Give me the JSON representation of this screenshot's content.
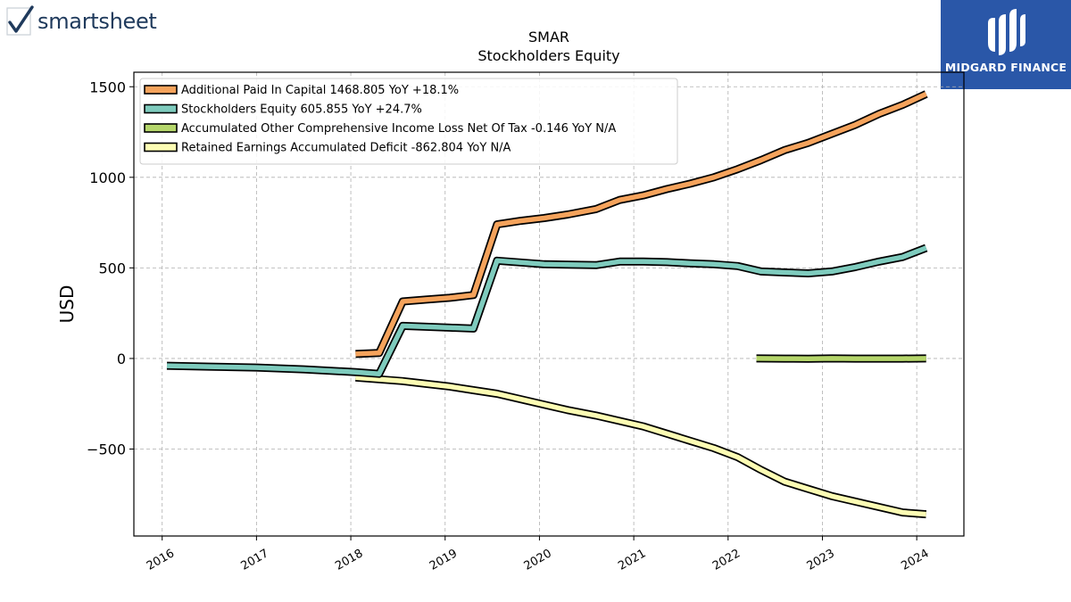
{
  "branding": {
    "left_logo_text": "smartsheet",
    "right_logo_text": "MIDGARD FINANCE"
  },
  "chart_data": {
    "type": "line",
    "title": "SMAR",
    "subtitle": "Stockholders  Equity",
    "xlabel": "",
    "ylabel": "USD",
    "xlim": [
      2015.7,
      2024.5
    ],
    "ylim": [
      -980,
      1580
    ],
    "x_ticks": [
      2016,
      2017,
      2018,
      2019,
      2020,
      2021,
      2022,
      2023,
      2024
    ],
    "x_tick_labels": [
      "2016",
      "2017",
      "2018",
      "2019",
      "2020",
      "2021",
      "2022",
      "2023",
      "2024"
    ],
    "y_ticks": [
      -500,
      0,
      500,
      1000,
      1500
    ],
    "y_tick_labels": [
      "−500",
      "0",
      "500",
      "1000",
      "1500"
    ],
    "grid": true,
    "legend_position": "top-left",
    "series": [
      {
        "name": "Additional Paid In Capital  1468.805 YoY +18.1%",
        "color": "#f5a35c",
        "x": [
          2018.05,
          2018.3,
          2018.55,
          2018.8,
          2019.05,
          2019.3,
          2019.55,
          2019.8,
          2020.05,
          2020.3,
          2020.6,
          2020.85,
          2021.1,
          2021.35,
          2021.6,
          2021.85,
          2022.1,
          2022.35,
          2022.6,
          2022.85,
          2023.1,
          2023.35,
          2023.6,
          2023.85,
          2024.1
        ],
        "y": [
          25,
          30,
          315,
          325,
          335,
          350,
          740,
          760,
          775,
          795,
          825,
          875,
          900,
          935,
          965,
          1000,
          1045,
          1095,
          1150,
          1190,
          1240,
          1290,
          1350,
          1400,
          1460
        ]
      },
      {
        "name": "Stockholders Equity  605.855 YoY +24.7%",
        "color": "#7ecbbd",
        "x": [
          2016.05,
          2016.5,
          2017.0,
          2017.5,
          2018.05,
          2018.3,
          2018.55,
          2018.8,
          2019.05,
          2019.3,
          2019.55,
          2019.8,
          2020.05,
          2020.3,
          2020.6,
          2020.85,
          2021.1,
          2021.35,
          2021.6,
          2021.85,
          2022.1,
          2022.35,
          2022.6,
          2022.85,
          2023.1,
          2023.35,
          2023.6,
          2023.85,
          2024.1
        ],
        "y": [
          -40,
          -45,
          -50,
          -60,
          -75,
          -85,
          180,
          175,
          170,
          165,
          540,
          530,
          520,
          518,
          515,
          535,
          535,
          532,
          525,
          520,
          510,
          480,
          475,
          470,
          480,
          505,
          535,
          560,
          610
        ]
      },
      {
        "name": "Accumulated Other Comprehensive Income Loss Net Of Tax  -0.146 YoY N/A",
        "color": "#b5d66b",
        "x": [
          2022.3,
          2022.6,
          2022.85,
          2023.1,
          2023.35,
          2023.6,
          2023.85,
          2024.1
        ],
        "y": [
          0,
          -1,
          -2,
          0,
          -1,
          -1,
          -1,
          0
        ]
      },
      {
        "name": "Retained Earnings Accumulated Deficit  -862.804 YoY N/A",
        "color": "#fdfdb4",
        "x": [
          2018.05,
          2018.3,
          2018.55,
          2018.8,
          2019.05,
          2019.3,
          2019.55,
          2019.8,
          2020.05,
          2020.3,
          2020.6,
          2020.85,
          2021.1,
          2021.35,
          2021.6,
          2021.85,
          2022.1,
          2022.35,
          2022.6,
          2022.85,
          2023.1,
          2023.35,
          2023.6,
          2023.85,
          2024.1
        ],
        "y": [
          -105,
          -115,
          -125,
          -140,
          -155,
          -175,
          -195,
          -225,
          -255,
          -285,
          -315,
          -345,
          -375,
          -415,
          -455,
          -495,
          -545,
          -615,
          -680,
          -720,
          -760,
          -790,
          -820,
          -850,
          -860
        ]
      }
    ]
  }
}
